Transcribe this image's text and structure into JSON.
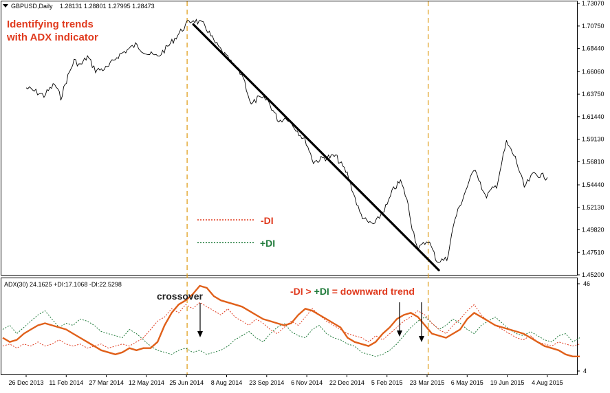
{
  "header": {
    "symbol_label": "GBPUSD,Daily",
    "ohlc": "1.28131 1.28801 1.27995 1.28473",
    "arrow_icon": "triangle-down-icon"
  },
  "annotations": {
    "title_line1": "Identifying trends",
    "title_line2": "with ADX indicator",
    "legend_minus": "-DI",
    "legend_plus": "+DI",
    "crossover": "crossover",
    "rule_minus": "-DI",
    "rule_gt": " > ",
    "rule_plus": "+DI",
    "rule_eq": " = downward trend"
  },
  "indicator": {
    "label": "ADX(30) 24.1625 +DI:17.1068 -DI:22.5298",
    "scale_top": "46",
    "scale_bottom": "4"
  },
  "colors": {
    "price": "#000000",
    "adx": "#e0601a",
    "minus_di": "#e03a1e",
    "plus_di": "#1f7a3a",
    "vline": "#e0a020",
    "trendline": "#000000"
  },
  "chart_data": [
    {
      "type": "line",
      "title": "GBPUSD,Daily",
      "y_ticks": [
        "1.73070",
        "1.70750",
        "1.68440",
        "1.66060",
        "1.63750",
        "1.61440",
        "1.59130",
        "1.56810",
        "1.54440",
        "1.52130",
        "1.49820",
        "1.47510",
        "1.45200"
      ],
      "ylim": [
        1.452,
        1.7307
      ],
      "x_ticks": [
        "26 Dec 2013",
        "11 Feb 2014",
        "27 Mar 2014",
        "12 May 2014",
        "25 Jun 2014",
        "8 Aug 2014",
        "23 Sep 2014",
        "6 Nov 2014",
        "22 Dec 2014",
        "5 Feb 2015",
        "23 Mar 2015",
        "6 May 2015",
        "19 Jun 2015",
        "4 Aug 2015"
      ],
      "series": [
        {
          "values": [
            [
              "26 Dec 2013",
              1.644
            ],
            [
              "6 Jan 2014",
              1.64
            ],
            [
              "15 Jan 2014",
              1.636
            ],
            [
              "27 Jan 2014",
              1.648
            ],
            [
              "3 Feb 2014",
              1.634
            ],
            [
              "11 Feb 2014",
              1.656
            ],
            [
              "18 Feb 2014",
              1.672
            ],
            [
              "25 Feb 2014",
              1.667
            ],
            [
              "5 Mar 2014",
              1.676
            ],
            [
              "14 Mar 2014",
              1.662
            ],
            [
              "27 Mar 2014",
              1.664
            ],
            [
              "7 Apr 2014",
              1.676
            ],
            [
              "17 Apr 2014",
              1.682
            ],
            [
              "28 Apr 2014",
              1.688
            ],
            [
              "12 May 2014",
              1.679
            ],
            [
              "23 May 2014",
              1.676
            ],
            [
              "3 Jun 2014",
              1.686
            ],
            [
              "16 Jun 2014",
              1.7
            ],
            [
              "25 Jun 2014",
              1.71
            ],
            [
              "2 Jul 2014",
              1.714
            ],
            [
              "15 Jul 2014",
              1.708
            ],
            [
              "25 Jul 2014",
              1.692
            ],
            [
              "8 Aug 2014",
              1.676
            ],
            [
              "15 Aug 2014",
              1.668
            ],
            [
              "27 Aug 2014",
              1.656
            ],
            [
              "5 Sep 2014",
              1.626
            ],
            [
              "12 Sep 2014",
              1.633
            ],
            [
              "23 Sep 2014",
              1.632
            ],
            [
              "6 Oct 2014",
              1.61
            ],
            [
              "15 Oct 2014",
              1.614
            ],
            [
              "27 Oct 2014",
              1.6
            ],
            [
              "6 Nov 2014",
              1.588
            ],
            [
              "14 Nov 2014",
              1.568
            ],
            [
              "26 Nov 2014",
              1.572
            ],
            [
              "9 Dec 2014",
              1.574
            ],
            [
              "22 Dec 2014",
              1.556
            ],
            [
              "5 Jan 2015",
              1.516
            ],
            [
              "13 Jan 2015",
              1.506
            ],
            [
              "22 Jan 2015",
              1.504
            ],
            [
              "5 Feb 2015",
              1.524
            ],
            [
              "12 Feb 2015",
              1.54
            ],
            [
              "20 Feb 2015",
              1.548
            ],
            [
              "27 Feb 2015",
              1.53
            ],
            [
              "5 Mar 2015",
              1.501
            ],
            [
              "12 Mar 2015",
              1.478
            ],
            [
              "23 Mar 2015",
              1.488
            ],
            [
              "2 Apr 2015",
              1.466
            ],
            [
              "13 Apr 2015",
              1.468
            ],
            [
              "22 Apr 2015",
              1.509
            ],
            [
              "6 May 2015",
              1.543
            ],
            [
              "15 May 2015",
              1.562
            ],
            [
              "26 May 2015",
              1.532
            ],
            [
              "8 Jun 2015",
              1.544
            ],
            [
              "19 Jun 2015",
              1.588
            ],
            [
              "29 Jun 2015",
              1.572
            ],
            [
              "9 Jul 2015",
              1.542
            ],
            [
              "20 Jul 2015",
              1.556
            ],
            [
              "4 Aug 2015",
              1.552
            ]
          ]
        }
      ],
      "trendline": {
        "from": [
          "2 Jul 2014",
          1.7092
        ],
        "to": [
          "4 Apr 2015",
          1.4568
        ]
      },
      "vertical_lines": [
        "25 Jun 2014",
        "23 Mar 2015"
      ],
      "grid": false
    },
    {
      "type": "line",
      "title": "ADX(30) 24.1625 +DI:17.1068 -DI:22.5298",
      "ylim": [
        4,
        46
      ],
      "y_ticks": [
        "46",
        "4"
      ],
      "series": [
        {
          "name": "ADX",
          "values": [
            20,
            18,
            19,
            22,
            24,
            26,
            27,
            26,
            25,
            24,
            22,
            20,
            18,
            16,
            14,
            13,
            12,
            13,
            15,
            14,
            15,
            15,
            18,
            26,
            32,
            36,
            38,
            41,
            45,
            44,
            40,
            38,
            37,
            36,
            35,
            33,
            31,
            29,
            28,
            27,
            26,
            27,
            31,
            34,
            33,
            31,
            29,
            27,
            25,
            20,
            18,
            17,
            16,
            18,
            22,
            25,
            29,
            31,
            32,
            30,
            26,
            22,
            21,
            20,
            22,
            24,
            29,
            32,
            30,
            28,
            26,
            25,
            24,
            23,
            22,
            20,
            18,
            16,
            15,
            14,
            12,
            11,
            11
          ]
        },
        {
          "name": "-DI",
          "values": [
            16,
            17,
            15,
            17,
            16,
            18,
            16,
            17,
            19,
            17,
            16,
            17,
            15,
            16,
            17,
            15,
            16,
            17,
            16,
            18,
            20,
            24,
            28,
            30,
            34,
            32,
            36,
            34,
            37,
            35,
            33,
            31,
            34,
            30,
            28,
            26,
            29,
            27,
            24,
            22,
            25,
            28,
            26,
            30,
            34,
            31,
            28,
            26,
            24,
            22,
            21,
            20,
            18,
            21,
            19,
            22,
            25,
            28,
            30,
            33,
            31,
            27,
            24,
            22,
            26,
            29,
            33,
            36,
            31,
            28,
            26,
            24,
            22,
            20,
            19,
            21,
            18,
            17,
            16,
            18,
            17,
            16,
            17
          ]
        },
        {
          "name": "+DI",
          "values": [
            24,
            26,
            22,
            25,
            28,
            31,
            33,
            29,
            25,
            27,
            26,
            29,
            28,
            26,
            23,
            22,
            21,
            20,
            24,
            22,
            19,
            16,
            14,
            13,
            12,
            14,
            15,
            13,
            14,
            12,
            13,
            14,
            16,
            19,
            21,
            23,
            20,
            18,
            22,
            25,
            27,
            23,
            21,
            20,
            24,
            26,
            22,
            20,
            19,
            17,
            16,
            13,
            12,
            11,
            12,
            14,
            17,
            21,
            25,
            28,
            30,
            27,
            24,
            26,
            29,
            27,
            24,
            22,
            26,
            28,
            30,
            27,
            24,
            22,
            21,
            23,
            21,
            19,
            18,
            21,
            22,
            18,
            20
          ]
        }
      ],
      "markers": [
        "crossover",
        "5 Feb 2015",
        "12 Feb 2015"
      ]
    }
  ]
}
